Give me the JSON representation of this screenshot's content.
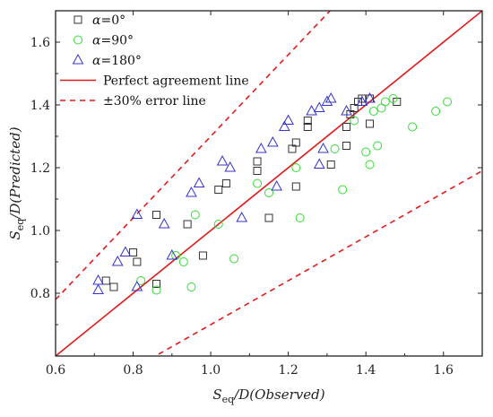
{
  "chart_data": {
    "type": "scatter",
    "xlabel": {
      "main": "S",
      "sub": "eq",
      "rest": "/D(Observed)"
    },
    "ylabel": {
      "main": "S",
      "sub": "eq",
      "rest": "/D(Predicted)"
    },
    "xlim": [
      0.6,
      1.7
    ],
    "ylim": [
      0.6,
      1.7
    ],
    "xticks": [
      0.6,
      0.8,
      1.0,
      1.2,
      1.4,
      1.6
    ],
    "yticks": [
      0.8,
      1.0,
      1.2,
      1.4,
      1.6
    ],
    "xtick_labels": [
      "0.6",
      "0.8",
      "1.0",
      "1.2",
      "1.4",
      "1.6"
    ],
    "ytick_labels": [
      "0.8",
      "1.0",
      "1.2",
      "1.4",
      "1.6"
    ],
    "grid": false,
    "legend_position": "top-left",
    "series": [
      {
        "name": "α=0°",
        "marker": "square",
        "color": "#333333",
        "points": [
          [
            0.73,
            0.84
          ],
          [
            0.75,
            0.82
          ],
          [
            0.8,
            0.93
          ],
          [
            0.81,
            0.9
          ],
          [
            0.86,
            1.05
          ],
          [
            0.86,
            0.83
          ],
          [
            0.94,
            1.02
          ],
          [
            0.98,
            0.92
          ],
          [
            1.02,
            1.13
          ],
          [
            1.04,
            1.15
          ],
          [
            1.12,
            1.19
          ],
          [
            1.12,
            1.22
          ],
          [
            1.15,
            1.04
          ],
          [
            1.21,
            1.26
          ],
          [
            1.22,
            1.28
          ],
          [
            1.22,
            1.14
          ],
          [
            1.25,
            1.33
          ],
          [
            1.25,
            1.35
          ],
          [
            1.31,
            1.21
          ],
          [
            1.35,
            1.27
          ],
          [
            1.35,
            1.33
          ],
          [
            1.36,
            1.37
          ],
          [
            1.37,
            1.39
          ],
          [
            1.38,
            1.41
          ],
          [
            1.39,
            1.42
          ],
          [
            1.41,
            1.34
          ],
          [
            1.41,
            1.42
          ],
          [
            1.48,
            1.41
          ]
        ]
      },
      {
        "name": "α=90°",
        "marker": "circle",
        "color": "#33dd33",
        "points": [
          [
            0.82,
            0.84
          ],
          [
            0.86,
            0.81
          ],
          [
            0.91,
            0.92
          ],
          [
            0.93,
            0.9
          ],
          [
            0.95,
            0.82
          ],
          [
            0.96,
            1.05
          ],
          [
            1.02,
            1.02
          ],
          [
            1.06,
            0.91
          ],
          [
            1.12,
            1.15
          ],
          [
            1.15,
            1.12
          ],
          [
            1.22,
            1.2
          ],
          [
            1.23,
            1.04
          ],
          [
            1.32,
            1.26
          ],
          [
            1.34,
            1.13
          ],
          [
            1.37,
            1.35
          ],
          [
            1.4,
            1.25
          ],
          [
            1.41,
            1.21
          ],
          [
            1.42,
            1.38
          ],
          [
            1.43,
            1.27
          ],
          [
            1.44,
            1.39
          ],
          [
            1.45,
            1.41
          ],
          [
            1.47,
            1.42
          ],
          [
            1.52,
            1.33
          ],
          [
            1.58,
            1.38
          ],
          [
            1.61,
            1.41
          ]
        ]
      },
      {
        "name": "α=180°",
        "marker": "triangle",
        "color": "#3333cc",
        "points": [
          [
            0.71,
            0.81
          ],
          [
            0.71,
            0.84
          ],
          [
            0.76,
            0.9
          ],
          [
            0.78,
            0.93
          ],
          [
            0.81,
            0.82
          ],
          [
            0.81,
            1.05
          ],
          [
            0.88,
            1.02
          ],
          [
            0.9,
            0.92
          ],
          [
            0.95,
            1.12
          ],
          [
            0.97,
            1.15
          ],
          [
            1.03,
            1.22
          ],
          [
            1.05,
            1.2
          ],
          [
            1.08,
            1.04
          ],
          [
            1.13,
            1.26
          ],
          [
            1.16,
            1.28
          ],
          [
            1.17,
            1.14
          ],
          [
            1.19,
            1.33
          ],
          [
            1.2,
            1.35
          ],
          [
            1.26,
            1.38
          ],
          [
            1.28,
            1.39
          ],
          [
            1.28,
            1.21
          ],
          [
            1.29,
            1.26
          ],
          [
            1.3,
            1.41
          ],
          [
            1.31,
            1.42
          ],
          [
            1.35,
            1.38
          ],
          [
            1.39,
            1.41
          ],
          [
            1.41,
            1.42
          ]
        ]
      },
      {
        "name": "Perfect agreement line",
        "marker": "line",
        "style": "solid",
        "color": "#e31a1c",
        "factor": 1.0
      },
      {
        "name": "±30% error line",
        "marker": "line",
        "style": "dashed",
        "color": "#e31a1c",
        "factors": [
          1.3,
          0.7
        ]
      }
    ]
  }
}
